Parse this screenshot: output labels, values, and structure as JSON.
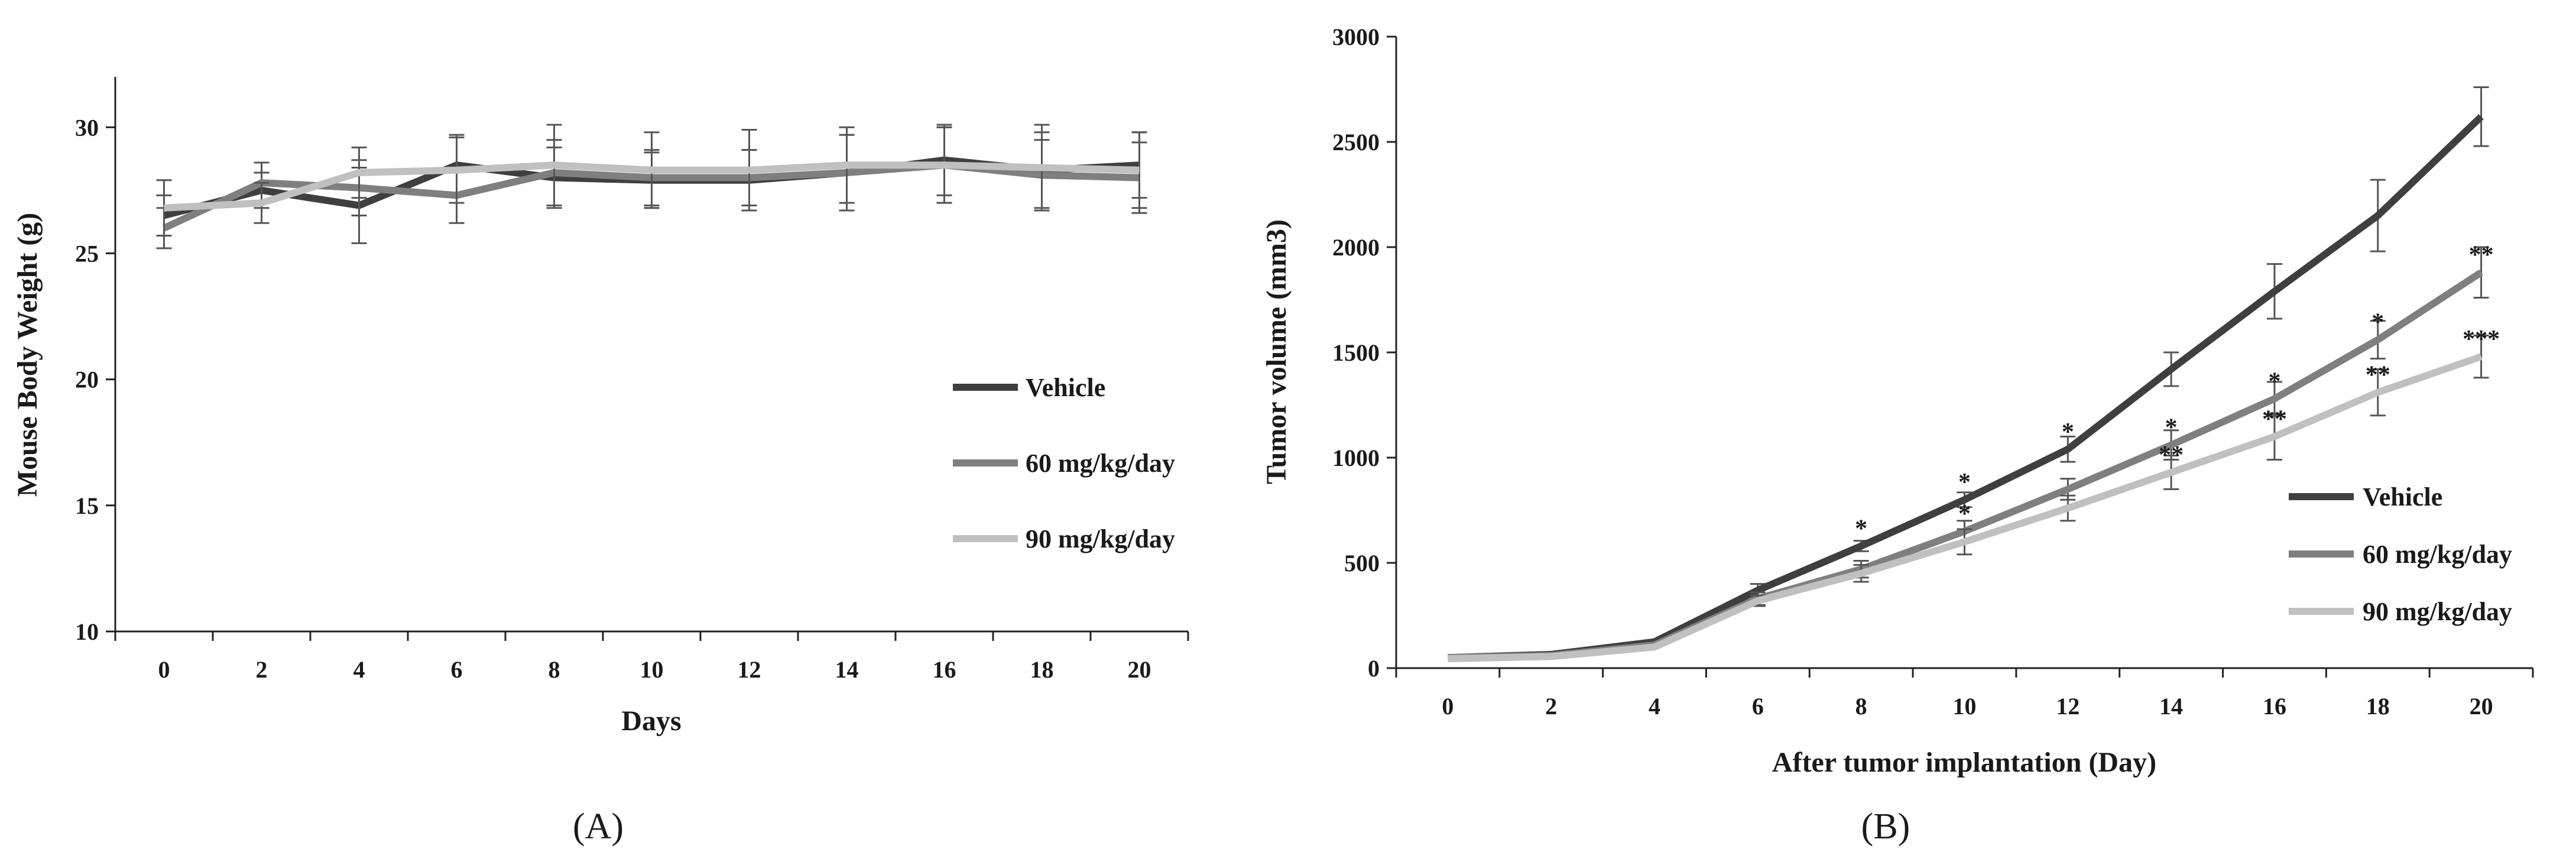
{
  "chart_data": [
    {
      "type": "line",
      "panel_label": "(A)",
      "xlabel": "Days",
      "ylabel": "Mouse Body Weight (g)",
      "x": [
        0,
        2,
        4,
        6,
        8,
        10,
        12,
        14,
        16,
        18,
        20
      ],
      "xlim": [
        -1,
        21
      ],
      "ylim": [
        10,
        32
      ],
      "yticks": [
        10,
        15,
        20,
        25,
        30
      ],
      "grid": false,
      "legend_position": "right-middle",
      "series": [
        {
          "name": "Vehicle",
          "color": "#3f3f3f",
          "values": [
            26.5,
            27.5,
            26.9,
            28.5,
            28.0,
            27.9,
            27.9,
            28.2,
            28.7,
            28.3,
            28.5
          ],
          "errors": [
            0.8,
            0.7,
            1.5,
            1.2,
            1.2,
            1.1,
            1.2,
            1.5,
            1.4,
            1.5,
            1.3
          ]
        },
        {
          "name": "60 mg/kg/day",
          "color": "#7f7f7f",
          "values": [
            26.0,
            27.8,
            27.6,
            27.3,
            28.2,
            28.0,
            28.0,
            28.2,
            28.5,
            28.1,
            28.0
          ],
          "errors": [
            0.8,
            0.8,
            1.1,
            1.1,
            1.3,
            1.1,
            1.1,
            1.5,
            1.5,
            1.4,
            1.4
          ]
        },
        {
          "name": "90 mg/kg/day",
          "color": "#c0c0c0",
          "values": [
            26.8,
            27.0,
            28.2,
            28.3,
            28.5,
            28.3,
            28.3,
            28.5,
            28.5,
            28.4,
            28.3
          ],
          "errors": [
            1.1,
            0.8,
            1.0,
            1.3,
            1.6,
            1.5,
            1.6,
            1.5,
            1.5,
            1.7,
            1.5
          ]
        }
      ]
    },
    {
      "type": "line",
      "panel_label": "(B)",
      "xlabel": "After tumor implantation (Day)",
      "ylabel": "Tumor volume (mm3)",
      "x": [
        0,
        2,
        4,
        6,
        8,
        10,
        12,
        14,
        16,
        18,
        20
      ],
      "xlim": [
        -1,
        21
      ],
      "ylim": [
        0,
        3000
      ],
      "yticks": [
        0,
        500,
        1000,
        1500,
        2000,
        2500,
        3000
      ],
      "grid": false,
      "legend_position": "right-middle",
      "series": [
        {
          "name": "Vehicle",
          "color": "#3f3f3f",
          "values": [
            50,
            65,
            125,
            370,
            580,
            800,
            1040,
            1420,
            1790,
            2150,
            2620
          ],
          "errors": [
            0,
            0,
            0,
            30,
            25,
            35,
            60,
            80,
            130,
            170,
            140
          ]
        },
        {
          "name": "60 mg/kg/day",
          "color": "#7f7f7f",
          "values": [
            50,
            60,
            110,
            330,
            470,
            650,
            850,
            1060,
            1280,
            1560,
            1880
          ],
          "errors": [
            0,
            0,
            0,
            30,
            40,
            50,
            50,
            70,
            80,
            90,
            120
          ]
        },
        {
          "name": "90 mg/kg/day",
          "color": "#c0c0c0",
          "values": [
            45,
            55,
            100,
            320,
            450,
            600,
            760,
            930,
            1100,
            1310,
            1480
          ],
          "errors": [
            0,
            0,
            0,
            25,
            40,
            60,
            60,
            80,
            110,
            110,
            100
          ]
        }
      ],
      "annotations": [
        {
          "x": 8,
          "value": 580,
          "text": "*"
        },
        {
          "x": 10,
          "value": 800,
          "text": "*"
        },
        {
          "x": 10,
          "value": 650,
          "text": "*"
        },
        {
          "x": 12,
          "value": 1040,
          "text": "*"
        },
        {
          "x": 14,
          "value": 1060,
          "text": "*"
        },
        {
          "x": 14,
          "value": 930,
          "text": "**"
        },
        {
          "x": 16,
          "value": 1280,
          "text": "*"
        },
        {
          "x": 16,
          "value": 1100,
          "text": "**"
        },
        {
          "x": 18,
          "value": 1560,
          "text": "*"
        },
        {
          "x": 18,
          "value": 1310,
          "text": "**"
        },
        {
          "x": 20,
          "value": 1880,
          "text": "**"
        },
        {
          "x": 20,
          "value": 1480,
          "text": "***"
        }
      ]
    }
  ]
}
